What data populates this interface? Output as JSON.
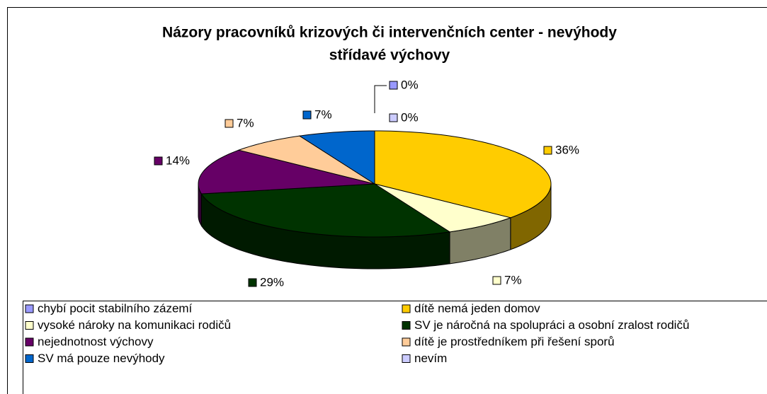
{
  "chart_data": {
    "type": "pie3d",
    "title": [
      "Názory pracovníků krizových či intervenčních center - nevýhody",
      "střídavé výchovy"
    ],
    "categories": [
      "chybí pocit stabilního zázemí",
      "dítě nemá jeden domov",
      "vysoké nároky na komunikaci rodičů",
      "SV je náročná na spolupráci a osobní zralost rodičů",
      "nejednotnost výchovy",
      "dítě je prostředníkem při řešení sporů",
      "SV má pouze nevýhody",
      "nevím"
    ],
    "values": [
      0,
      36,
      7,
      29,
      14,
      7,
      7,
      0
    ],
    "value_labels": [
      "0%",
      "36%",
      "7%",
      "29%",
      "14%",
      "7%",
      "7%",
      "0%"
    ],
    "colors": [
      "#9999ff",
      "#ffcc00",
      "#ffffcc",
      "#003300",
      "#660066",
      "#ffcc99",
      "#0066cc",
      "#ccccff"
    ],
    "legend": "bottom"
  }
}
